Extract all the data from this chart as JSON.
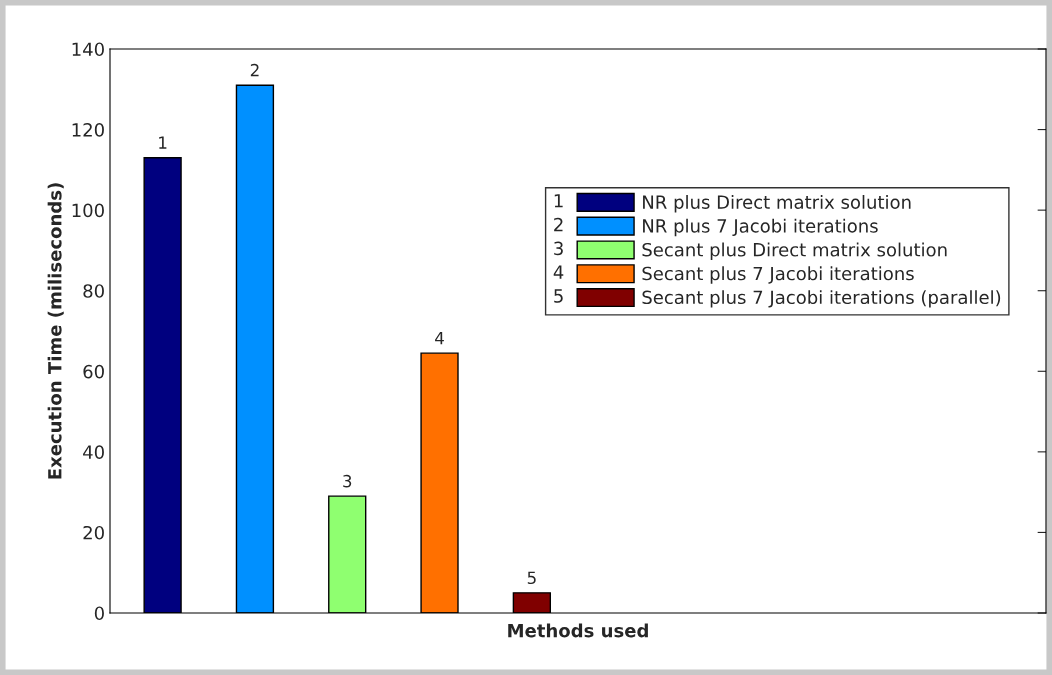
{
  "chart_data": {
    "type": "bar",
    "xlabel": "Methods used",
    "ylabel": "Execution Time (miliseconds)",
    "categories": [
      null,
      null,
      null,
      null,
      null,
      null,
      null,
      null,
      null,
      null
    ],
    "series": [
      {
        "name": "NR plus Direct matrix solution",
        "color": "#00007f",
        "values": [
          113,
          null,
          null,
          null,
          null,
          null,
          null,
          null,
          null,
          null
        ]
      },
      {
        "name": "NR plus 7 Jacobi iterations",
        "color": "#0090ff",
        "values": [
          null,
          131,
          null,
          null,
          null,
          null,
          null,
          null,
          null,
          null
        ]
      },
      {
        "name": "Secant plus Direct matrix solution",
        "color": "#8fff70",
        "values": [
          null,
          null,
          29,
          null,
          null,
          null,
          null,
          null,
          null,
          null
        ]
      },
      {
        "name": "Secant plus 7 Jacobi iterations",
        "color": "#ff7000",
        "values": [
          null,
          null,
          null,
          64.5,
          null,
          null,
          null,
          null,
          null,
          null
        ]
      },
      {
        "name": "Secant plus 7 Jacobi iterations (parallel)",
        "color": "#800000",
        "values": [
          null,
          null,
          null,
          null,
          5,
          null,
          null,
          null,
          null,
          null
        ]
      }
    ],
    "annotations": [
      {
        "text": "1",
        "y": 113
      },
      {
        "text": "2",
        "y": 131
      },
      {
        "text": "3",
        "y": 29
      },
      {
        "text": "4",
        "y": 64.5
      },
      {
        "text": "5",
        "y": 5
      }
    ],
    "ylim": [
      0,
      140
    ],
    "yticks": [
      0,
      20,
      40,
      60,
      80,
      100,
      120,
      140
    ],
    "grid": false,
    "legend": "top right"
  }
}
